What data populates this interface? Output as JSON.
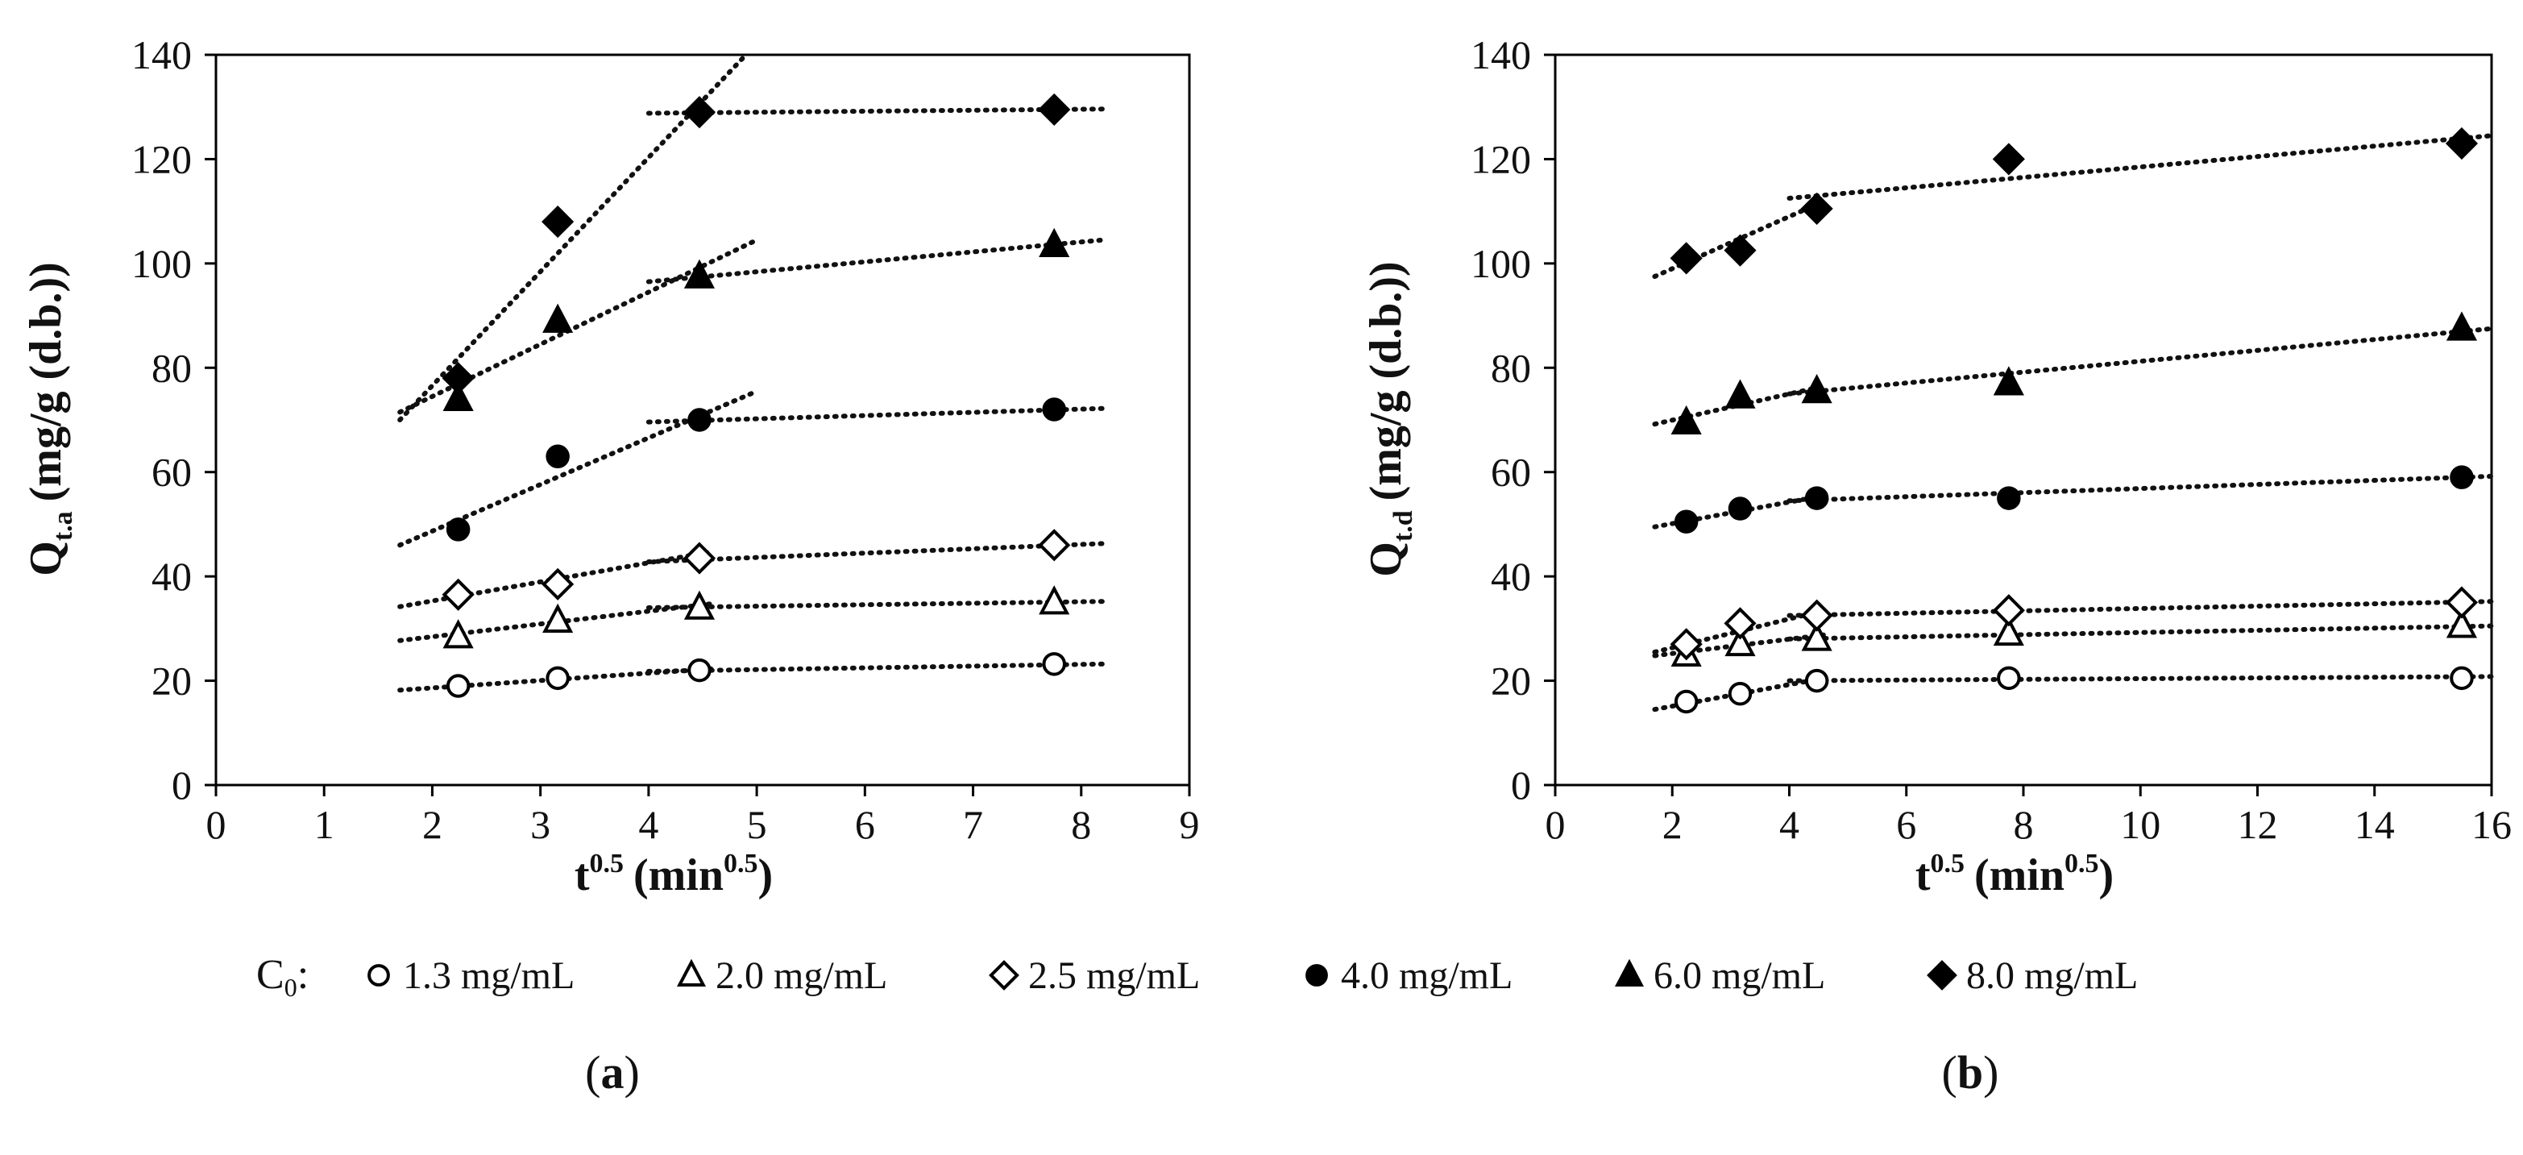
{
  "chart_data": [
    {
      "id": "a",
      "type": "scatter",
      "panel_label": "a",
      "xlabel": "t",
      "xlabel_sup": "0.5",
      "xlabel_units": "(min",
      "xlabel_units_sup": "0.5",
      "xlabel_close": ")",
      "ylabel": "Q",
      "ylabel_sub": "t.a",
      "ylabel_rest": "(mg/g (d.b.))",
      "xlim": [
        0,
        9
      ],
      "ylim": [
        0,
        140
      ],
      "xticks": [
        0,
        1,
        2,
        3,
        4,
        5,
        6,
        7,
        8,
        9
      ],
      "yticks": [
        0,
        20,
        40,
        60,
        80,
        100,
        120,
        140
      ],
      "grid": false,
      "series": [
        {
          "name": "1.3 mg/mL",
          "marker": "circle-open",
          "x": [
            2.24,
            3.16,
            4.47,
            7.75
          ],
          "y": [
            19,
            20.5,
            22,
            23.2
          ],
          "trendlines": [
            {
              "x": [
                1.7,
                4.6
              ],
              "y": [
                18.2,
                22.3
              ]
            },
            {
              "x": [
                4.0,
                8.2
              ],
              "y": [
                21.8,
                23.2
              ]
            }
          ]
        },
        {
          "name": "2.0 mg/mL",
          "marker": "triangle-open",
          "x": [
            2.24,
            3.16,
            4.47,
            7.75
          ],
          "y": [
            28.5,
            31.5,
            34,
            35
          ],
          "trendlines": [
            {
              "x": [
                1.7,
                4.6
              ],
              "y": [
                27.7,
                34.8
              ]
            },
            {
              "x": [
                4.0,
                8.2
              ],
              "y": [
                34.0,
                35.2
              ]
            }
          ]
        },
        {
          "name": "2.5 mg/mL",
          "marker": "diamond-open",
          "x": [
            2.24,
            3.16,
            4.47,
            7.75
          ],
          "y": [
            36.5,
            38.5,
            43.5,
            46
          ],
          "trendlines": [
            {
              "x": [
                1.7,
                4.6
              ],
              "y": [
                34.2,
                44.8
              ]
            },
            {
              "x": [
                4.0,
                8.2
              ],
              "y": [
                42.8,
                46.3
              ]
            }
          ]
        },
        {
          "name": "4.0 mg/mL",
          "marker": "circle-filled",
          "x": [
            2.24,
            3.16,
            4.47,
            7.75
          ],
          "y": [
            49,
            63,
            70,
            72
          ],
          "trendlines": [
            {
              "x": [
                1.7,
                5.0
              ],
              "y": [
                46.0,
                75.5
              ]
            },
            {
              "x": [
                4.0,
                8.2
              ],
              "y": [
                69.6,
                72.2
              ]
            }
          ]
        },
        {
          "name": "6.0 mg/mL",
          "marker": "triangle-filled",
          "x": [
            2.24,
            3.16,
            4.47,
            7.75
          ],
          "y": [
            74,
            89,
            97.5,
            103.5
          ],
          "trendlines": [
            {
              "x": [
                1.7,
                5.0
              ],
              "y": [
                71.5,
                104.5
              ]
            },
            {
              "x": [
                4.0,
                8.2
              ],
              "y": [
                96.5,
                104.5
              ]
            }
          ]
        },
        {
          "name": "8.0 mg/mL",
          "marker": "diamond-filled",
          "x": [
            2.24,
            3.16,
            4.47,
            7.75
          ],
          "y": [
            78,
            108,
            129,
            129.5
          ],
          "trendlines": [
            {
              "x": [
                1.7,
                4.9
              ],
              "y": [
                70.0,
                140.0
              ]
            },
            {
              "x": [
                4.0,
                8.2
              ],
              "y": [
                128.8,
                129.6
              ]
            }
          ]
        }
      ]
    },
    {
      "id": "b",
      "type": "scatter",
      "panel_label": "b",
      "xlabel": "t",
      "xlabel_sup": "0.5",
      "xlabel_units": "(min",
      "xlabel_units_sup": "0.5",
      "xlabel_close": ")",
      "ylabel": "Q",
      "ylabel_sub": "t.d",
      "ylabel_rest": "(mg/g (d.b.))",
      "xlim": [
        0,
        16
      ],
      "ylim": [
        0,
        140
      ],
      "xticks": [
        0,
        2,
        4,
        6,
        8,
        10,
        12,
        14,
        16
      ],
      "yticks": [
        0,
        20,
        40,
        60,
        80,
        100,
        120,
        140
      ],
      "grid": false,
      "series": [
        {
          "name": "1.3 mg/mL",
          "marker": "circle-open",
          "x": [
            2.24,
            3.16,
            4.47,
            7.75,
            15.49
          ],
          "y": [
            16,
            17.5,
            20,
            20.5,
            20.5
          ],
          "trendlines": [
            {
              "x": [
                1.7,
                4.6
              ],
              "y": [
                14.5,
                20.5
              ]
            },
            {
              "x": [
                4.0,
                16.0
              ],
              "y": [
                20.0,
                20.8
              ]
            }
          ]
        },
        {
          "name": "2.0 mg/mL",
          "marker": "triangle-open",
          "x": [
            2.24,
            3.16,
            4.47,
            7.75,
            15.49
          ],
          "y": [
            25,
            27,
            28,
            29,
            30.5
          ],
          "trendlines": [
            {
              "x": [
                1.7,
                4.6
              ],
              "y": [
                24.8,
                28.8
              ]
            },
            {
              "x": [
                4.0,
                16.0
              ],
              "y": [
                28.0,
                30.5
              ]
            }
          ]
        },
        {
          "name": "2.5 mg/mL",
          "marker": "diamond-open",
          "x": [
            2.24,
            3.16,
            4.47,
            7.75,
            15.49
          ],
          "y": [
            27,
            31,
            32.5,
            33.5,
            35
          ],
          "trendlines": [
            {
              "x": [
                1.7,
                4.6
              ],
              "y": [
                25.5,
                33.5
              ]
            },
            {
              "x": [
                4.0,
                16.0
              ],
              "y": [
                32.5,
                35.2
              ]
            }
          ]
        },
        {
          "name": "4.0 mg/mL",
          "marker": "circle-filled",
          "x": [
            2.24,
            3.16,
            4.47,
            7.75,
            15.49
          ],
          "y": [
            50.5,
            53,
            55,
            55,
            59
          ],
          "trendlines": [
            {
              "x": [
                1.7,
                4.6
              ],
              "y": [
                49.5,
                55.5
              ]
            },
            {
              "x": [
                4.0,
                16.0
              ],
              "y": [
                54.5,
                59.2
              ]
            }
          ]
        },
        {
          "name": "6.0 mg/mL",
          "marker": "triangle-filled",
          "x": [
            2.24,
            3.16,
            4.47,
            7.75,
            15.49
          ],
          "y": [
            69.5,
            74.5,
            75.5,
            77,
            87.5
          ],
          "trendlines": [
            {
              "x": [
                1.7,
                4.6
              ],
              "y": [
                69.2,
                76.5
              ]
            },
            {
              "x": [
                4.0,
                16.0
              ],
              "y": [
                75.0,
                87.5
              ]
            }
          ]
        },
        {
          "name": "8.0 mg/mL",
          "marker": "diamond-filled",
          "x": [
            2.24,
            3.16,
            4.47,
            7.75,
            15.49
          ],
          "y": [
            101,
            102.5,
            110.5,
            120,
            123
          ],
          "trendlines": [
            {
              "x": [
                1.7,
                4.6
              ],
              "y": [
                97.5,
                112.0
              ]
            },
            {
              "x": [
                4.0,
                16.0
              ],
              "y": [
                112.5,
                124.5
              ]
            }
          ]
        }
      ]
    }
  ],
  "legend": {
    "prefix": "C",
    "prefix_sub": "0",
    "colon": ":",
    "entries": [
      {
        "label": "1.3 mg/mL",
        "marker": "circle-open"
      },
      {
        "label": "2.0 mg/mL",
        "marker": "triangle-open"
      },
      {
        "label": "2.5 mg/mL",
        "marker": "diamond-open"
      },
      {
        "label": "4.0 mg/mL",
        "marker": "circle-filled"
      },
      {
        "label": "6.0 mg/mL",
        "marker": "triangle-filled"
      },
      {
        "label": "8.0 mg/mL",
        "marker": "diamond-filled"
      }
    ]
  },
  "panel_label_open": "(",
  "panel_label_close": ")"
}
